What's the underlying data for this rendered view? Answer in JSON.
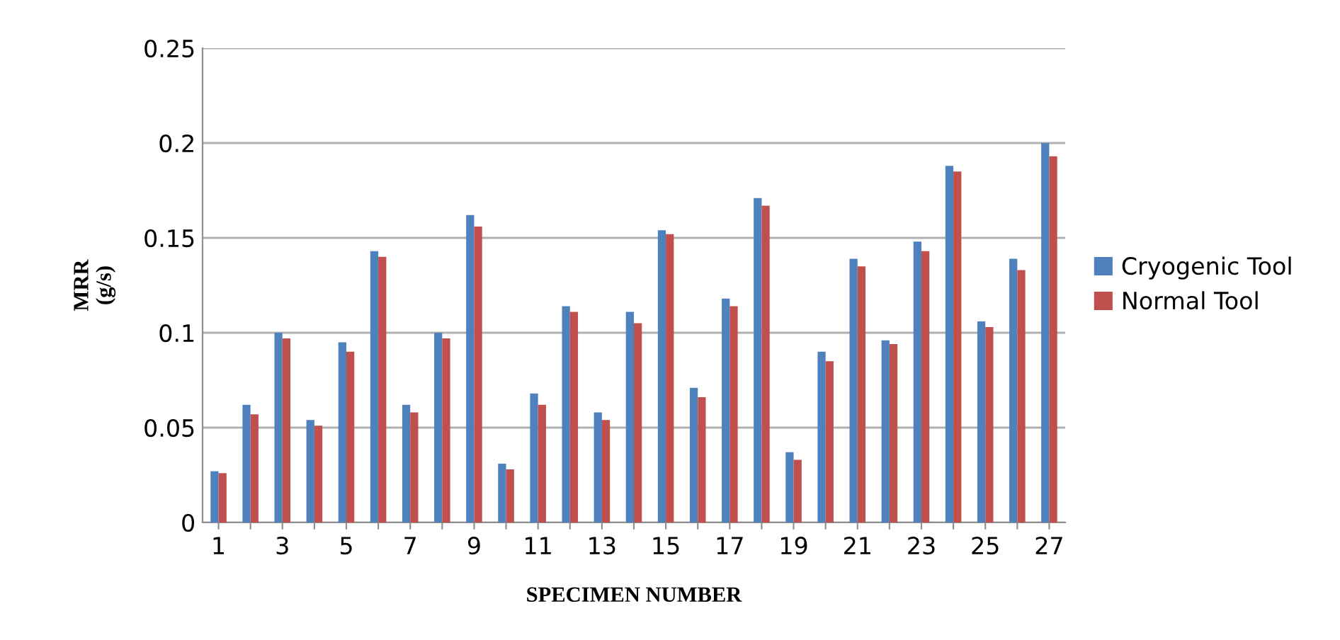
{
  "chart_data": {
    "type": "bar",
    "xlabel": "SPECIMEN NUMBER",
    "ylabel": "MRR\n(g/s)",
    "categories": [
      "1",
      null,
      "3",
      null,
      "5",
      null,
      "7",
      null,
      "9",
      null,
      "11",
      null,
      "13",
      null,
      "15",
      null,
      "17",
      null,
      "19",
      null,
      "21",
      null,
      "23",
      null,
      "25",
      null,
      "27"
    ],
    "series": [
      {
        "name": "Cryogenic Tool",
        "color": "#4f81bd",
        "values": [
          0.027,
          0.062,
          0.1,
          0.054,
          0.095,
          0.143,
          0.062,
          0.1,
          0.162,
          0.031,
          0.068,
          0.114,
          0.058,
          0.111,
          0.154,
          0.071,
          0.118,
          0.171,
          0.037,
          0.09,
          0.139,
          0.096,
          0.148,
          0.188,
          0.106,
          0.139,
          0.2
        ]
      },
      {
        "name": "Normal Tool",
        "color": "#c0504d",
        "values": [
          0.026,
          0.057,
          0.097,
          0.051,
          0.09,
          0.14,
          0.058,
          0.097,
          0.156,
          0.028,
          0.062,
          0.111,
          0.054,
          0.105,
          0.152,
          0.066,
          0.114,
          0.167,
          0.033,
          0.085,
          0.135,
          0.094,
          0.143,
          0.185,
          0.103,
          0.133,
          0.193
        ]
      }
    ],
    "ylim": [
      0,
      0.25
    ],
    "yticks": [
      0,
      0.05,
      0.1,
      0.15,
      0.2,
      0.25
    ],
    "grid": "y",
    "legend": "right"
  }
}
